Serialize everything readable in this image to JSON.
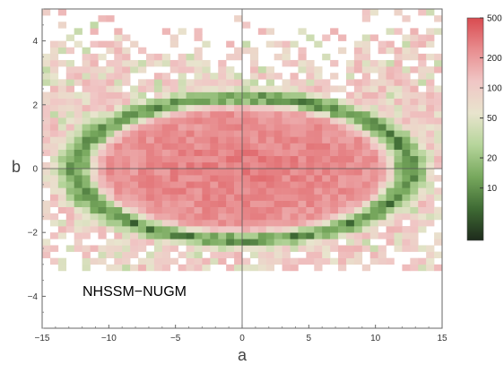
{
  "chart_data": {
    "type": "heatmap",
    "xlabel": "a",
    "ylabel": "b",
    "xlim": [
      -15,
      15
    ],
    "ylim": [
      -5,
      5
    ],
    "xticks": [
      -15,
      -10,
      -5,
      0,
      5,
      10,
      15
    ],
    "yticks": [
      -4,
      -2,
      0,
      2,
      4
    ],
    "xtick_labels": [
      "−15",
      "−10",
      "−5",
      "0",
      "5",
      "10",
      "15"
    ],
    "ytick_labels": [
      "−4",
      "−2",
      "0",
      "2",
      "4"
    ],
    "annotation": "NHSSM−NUGM",
    "bin_width_a": 0.6,
    "bin_width_b": 0.2,
    "model": {
      "description": "elliptical ring density: bins near ellipse a/13, b/2.3 radius 1 are low (green), interior high (pink), outer scattered",
      "ring_a": 13,
      "ring_b": 2.3,
      "center_count": 300,
      "ring_count": 8,
      "outer_count": 90
    },
    "colorbar": {
      "scale": "log",
      "range": [
        3,
        500
      ],
      "ticks": [
        10,
        20,
        50,
        100,
        200,
        500
      ],
      "tick_labels": [
        "10",
        "20",
        "50",
        "100",
        "200",
        "500"
      ],
      "colors": [
        "#1e2b1c",
        "#3f6b34",
        "#77a85d",
        "#b6d59b",
        "#e8e4cd",
        "#f0c6c5",
        "#e88d8f",
        "#d94b50"
      ]
    },
    "grid": false,
    "reference_lines": [
      {
        "axis": "x",
        "value": 0
      },
      {
        "axis": "y",
        "value": 0
      }
    ]
  }
}
